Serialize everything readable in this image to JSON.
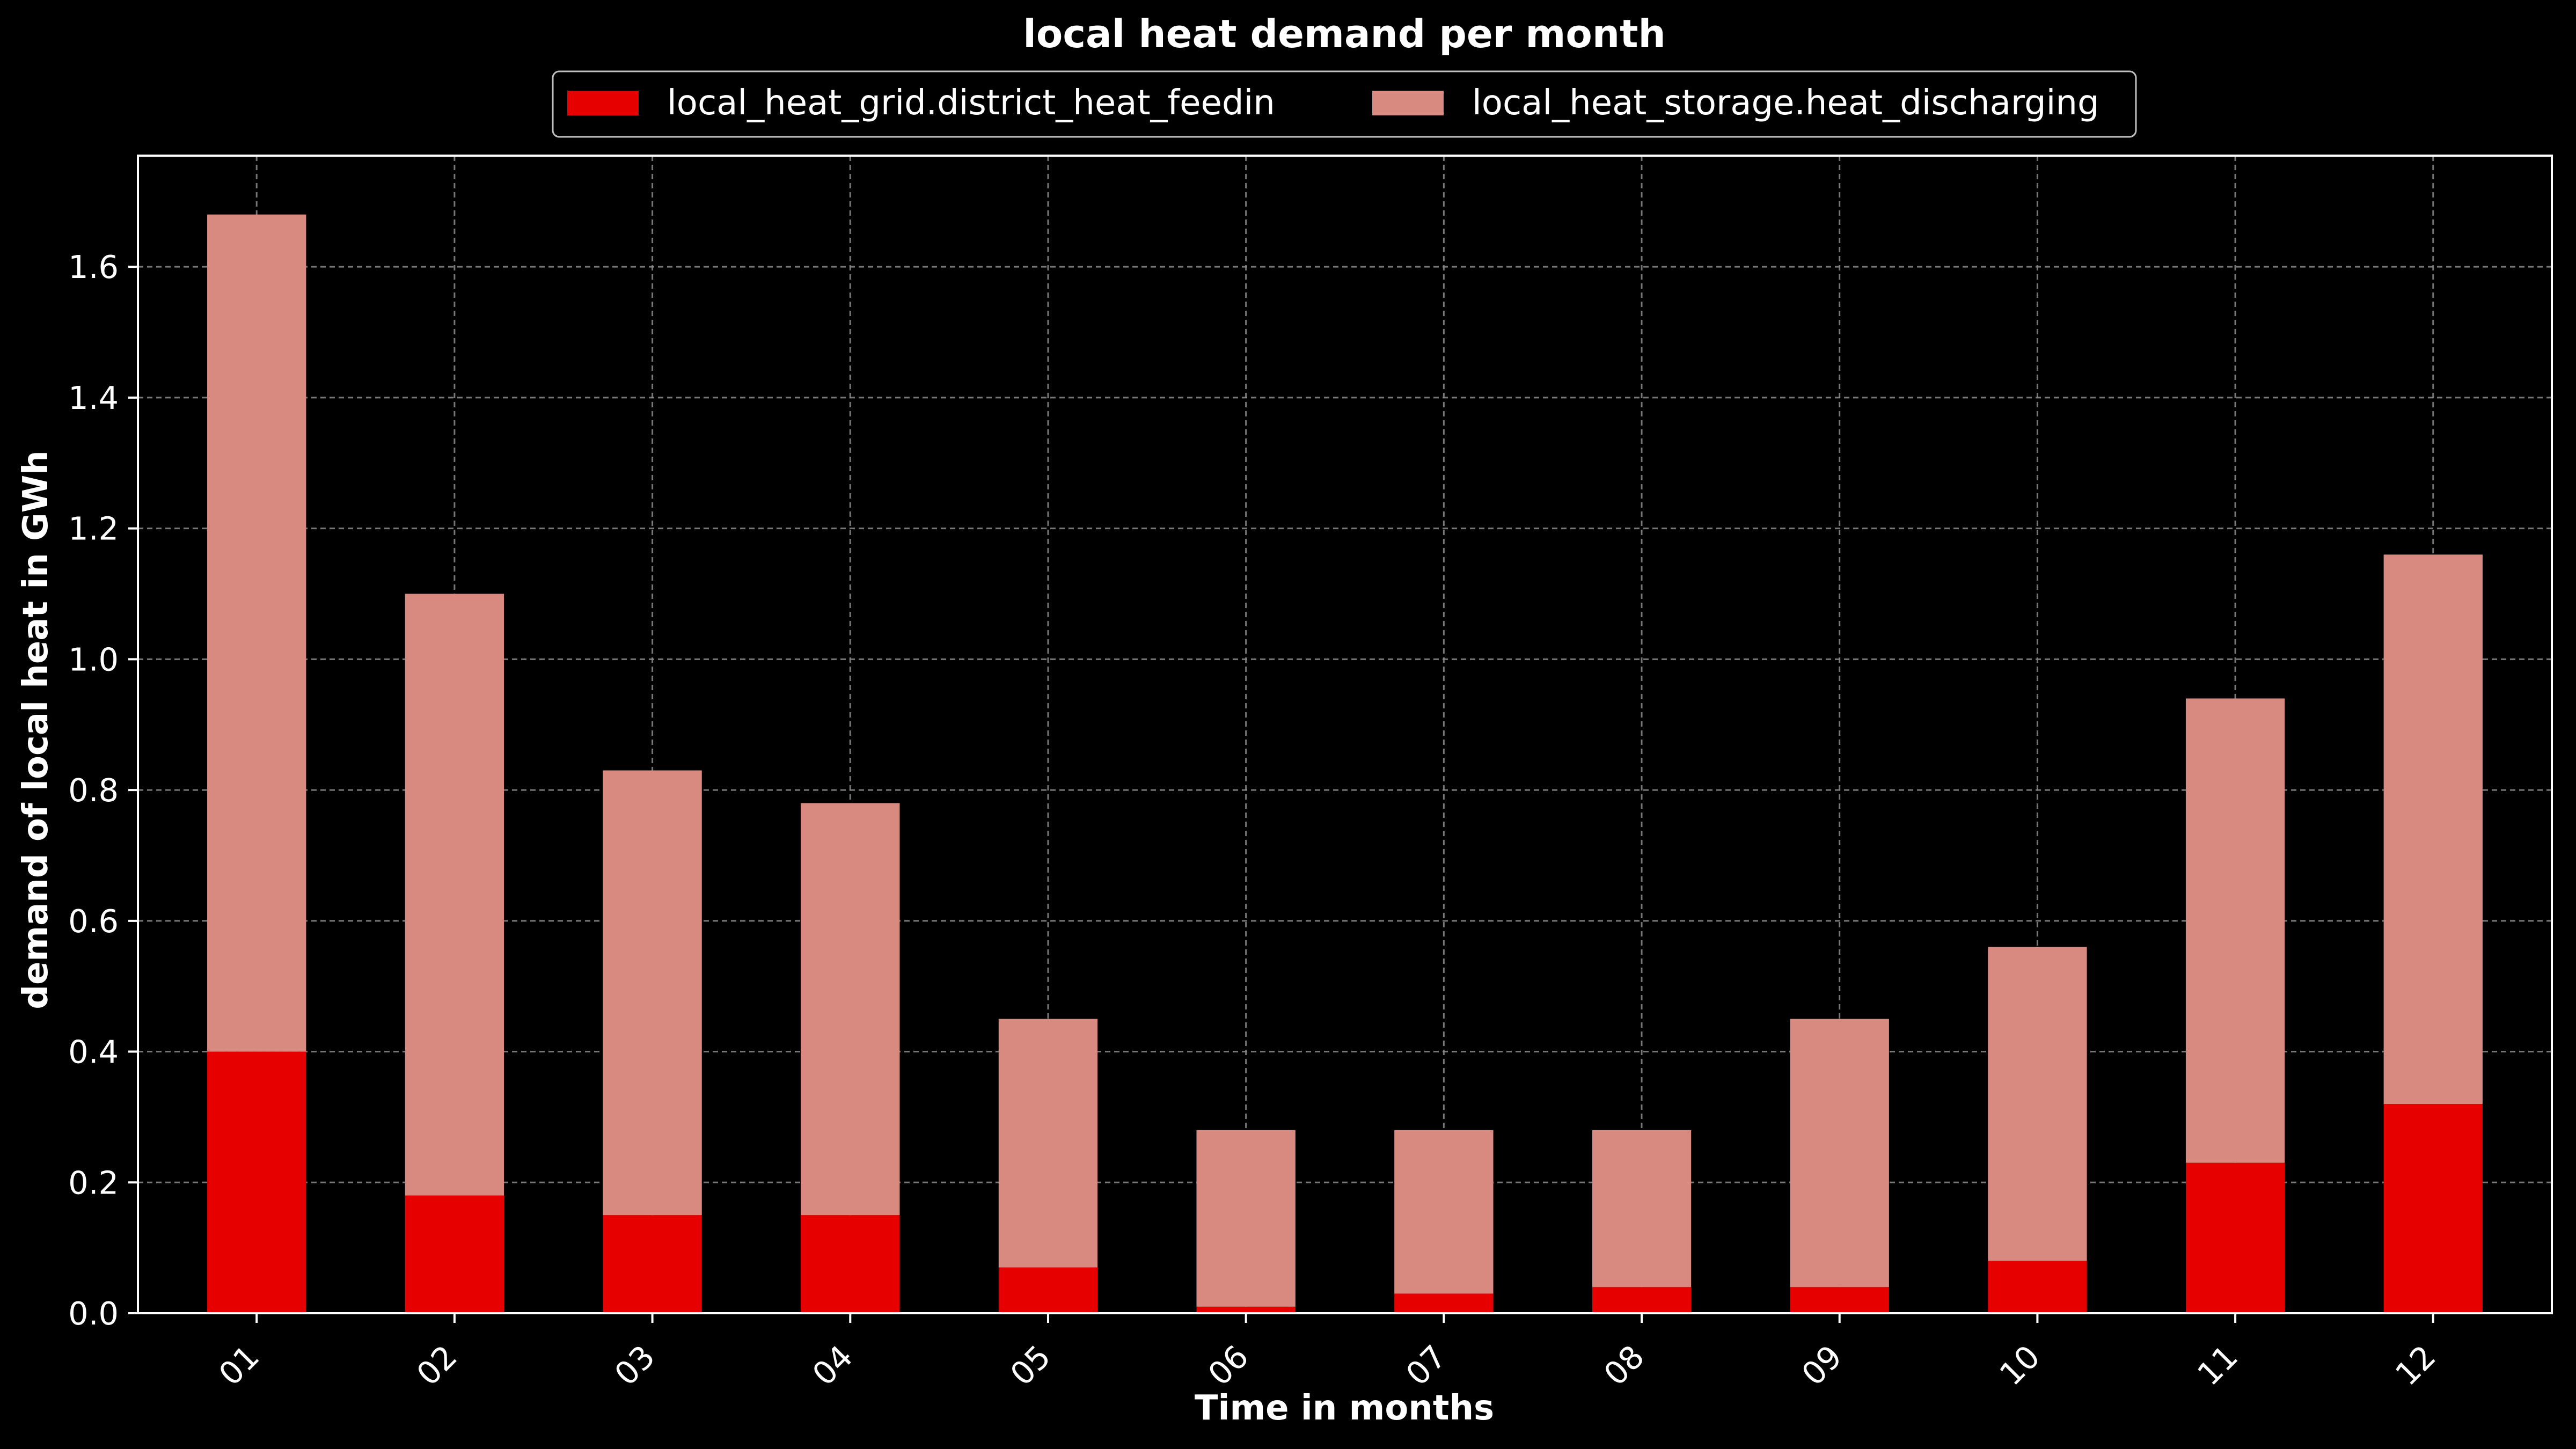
{
  "colors": {
    "background": "#000000",
    "district_heat_feedin": "#e60000",
    "heat_discharging": "#d88a80",
    "axis": "#ffffff",
    "grid": "#8c8c8c"
  },
  "chart_data": {
    "type": "bar",
    "stacked": true,
    "title": "local heat demand per month",
    "xlabel": "Time in months",
    "ylabel": "demand of local heat in GWh",
    "ylim": [
      0,
      1.77
    ],
    "yticks": [
      "0.0",
      "0.2",
      "0.4",
      "0.6",
      "0.8",
      "1.0",
      "1.2",
      "1.4",
      "1.6"
    ],
    "grid": true,
    "legend_position": "top-center",
    "categories": [
      "01",
      "02",
      "03",
      "04",
      "05",
      "06",
      "07",
      "08",
      "09",
      "10",
      "11",
      "12"
    ],
    "series": [
      {
        "name": "local_heat_grid.district_heat_feedin",
        "color": "#e60000",
        "values": [
          0.4,
          0.18,
          0.15,
          0.15,
          0.07,
          0.01,
          0.03,
          0.04,
          0.04,
          0.08,
          0.23,
          0.32
        ]
      },
      {
        "name": "local_heat_storage.heat_discharging",
        "color": "#d88a80",
        "values": [
          1.28,
          0.92,
          0.68,
          0.63,
          0.38,
          0.27,
          0.25,
          0.24,
          0.41,
          0.48,
          0.71,
          0.84
        ]
      }
    ]
  }
}
